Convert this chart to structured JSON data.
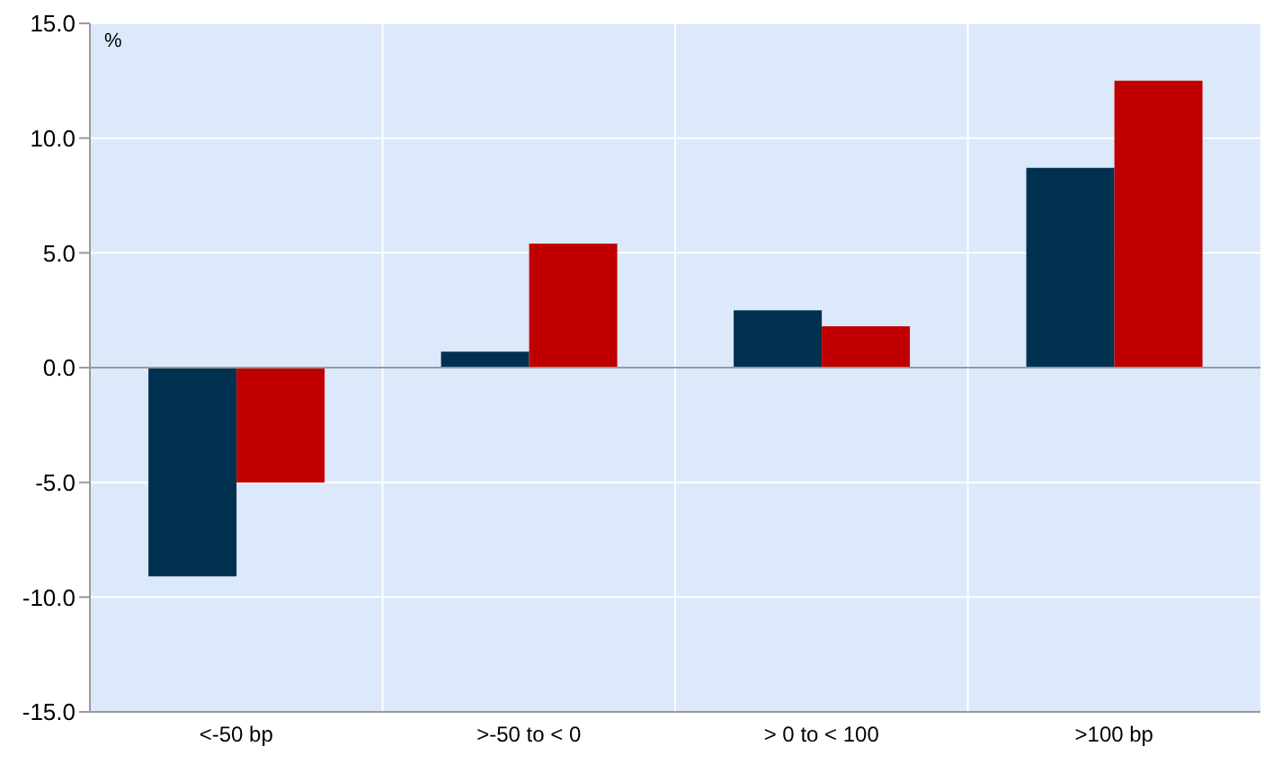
{
  "chart_data": {
    "type": "bar",
    "ylabel": "%",
    "categories": [
      "<-50 bp",
      ">-50 to < 0",
      "> 0 to < 100",
      ">100 bp"
    ],
    "series": [
      {
        "color": "#003150",
        "values": [
          -9.1,
          0.7,
          2.5,
          8.7
        ]
      },
      {
        "color": "#c00000",
        "values": [
          -5.0,
          5.4,
          1.8,
          12.5
        ]
      }
    ],
    "ylim": [
      -15,
      15
    ],
    "yticks": [
      {
        "value": -15,
        "label": "-15.0"
      },
      {
        "value": -10,
        "label": "-10.0"
      },
      {
        "value": -5,
        "label": "-5.0"
      },
      {
        "value": 0,
        "label": "0.0"
      },
      {
        "value": 5,
        "label": "5.0"
      },
      {
        "value": 10,
        "label": "10.0"
      },
      {
        "value": 15,
        "label": "15.0"
      }
    ],
    "grid": true
  }
}
